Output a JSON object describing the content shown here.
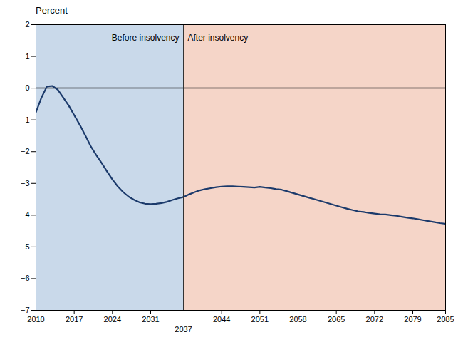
{
  "chart_data": {
    "type": "line",
    "y_label": "Percent",
    "x": [
      2010,
      2011,
      2012,
      2013,
      2014,
      2015,
      2016,
      2017,
      2018,
      2019,
      2020,
      2021,
      2022,
      2023,
      2024,
      2025,
      2026,
      2027,
      2028,
      2029,
      2030,
      2031,
      2032,
      2033,
      2034,
      2035,
      2036,
      2037,
      2038,
      2039,
      2040,
      2041,
      2042,
      2043,
      2044,
      2045,
      2046,
      2047,
      2048,
      2049,
      2050,
      2051,
      2052,
      2053,
      2054,
      2055,
      2056,
      2057,
      2058,
      2059,
      2060,
      2061,
      2062,
      2063,
      2064,
      2065,
      2066,
      2067,
      2068,
      2069,
      2070,
      2071,
      2072,
      2073,
      2074,
      2075,
      2076,
      2077,
      2078,
      2079,
      2080,
      2081,
      2082,
      2083,
      2084,
      2085
    ],
    "values": [
      -0.76,
      -0.3,
      0.05,
      0.07,
      -0.05,
      -0.3,
      -0.55,
      -0.85,
      -1.15,
      -1.48,
      -1.82,
      -2.1,
      -2.35,
      -2.62,
      -2.88,
      -3.1,
      -3.28,
      -3.42,
      -3.52,
      -3.6,
      -3.64,
      -3.65,
      -3.64,
      -3.62,
      -3.58,
      -3.52,
      -3.47,
      -3.43,
      -3.35,
      -3.28,
      -3.22,
      -3.18,
      -3.15,
      -3.12,
      -3.1,
      -3.09,
      -3.09,
      -3.1,
      -3.11,
      -3.12,
      -3.13,
      -3.11,
      -3.13,
      -3.15,
      -3.18,
      -3.2,
      -3.25,
      -3.3,
      -3.35,
      -3.4,
      -3.45,
      -3.5,
      -3.55,
      -3.6,
      -3.65,
      -3.7,
      -3.75,
      -3.8,
      -3.84,
      -3.88,
      -3.9,
      -3.93,
      -3.95,
      -3.97,
      -3.98,
      -4.0,
      -4.02,
      -4.05,
      -4.08,
      -4.1,
      -4.13,
      -4.16,
      -4.19,
      -4.22,
      -4.25,
      -4.27
    ],
    "color": "#1b3a6b",
    "xlim": [
      2010,
      2085
    ],
    "xticks": [
      2010,
      2017,
      2024,
      2031,
      2044,
      2051,
      2058,
      2065,
      2072,
      2079,
      2085
    ],
    "ylim": [
      -7,
      2
    ],
    "yticks": [
      -7,
      -6,
      -5,
      -4,
      -3,
      -2,
      -1,
      0,
      1,
      2
    ],
    "grid": true,
    "regions": [
      {
        "x": [
          2010,
          2037
        ],
        "label": "Before insolvency",
        "color": "#c9d9ea"
      },
      {
        "x": [
          2037,
          2085
        ],
        "label": "After insolvency",
        "color": "#f5d5c8"
      }
    ],
    "divider": {
      "x": 2037,
      "label": "2037"
    },
    "hlines": [
      0
    ]
  }
}
